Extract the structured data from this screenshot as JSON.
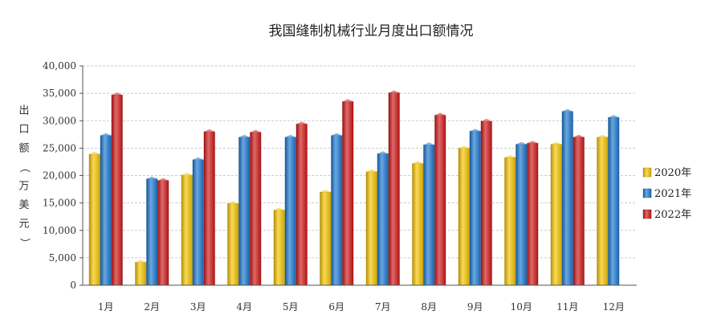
{
  "chart_data": {
    "type": "bar",
    "title": "我国缝制机械行业月度出口额情况",
    "ylabel": "出口额（万美元）",
    "xlabel": "",
    "ylim": [
      0,
      40000
    ],
    "yticks": [
      0,
      5000,
      10000,
      15000,
      20000,
      25000,
      30000,
      35000,
      40000
    ],
    "ytick_labels": [
      "0",
      "5,000",
      "10,000",
      "15,000",
      "20,000",
      "25,000",
      "30,000",
      "35,000",
      "40,000"
    ],
    "grid": true,
    "legend_position": "right",
    "categories": [
      "1月",
      "2月",
      "3月",
      "4月",
      "5月",
      "6月",
      "7月",
      "8月",
      "9月",
      "10月",
      "11月",
      "12月"
    ],
    "series": [
      {
        "name": "2020年",
        "color": "#F5C400",
        "values": [
          23900,
          4200,
          20100,
          14900,
          13700,
          17000,
          20700,
          22200,
          25000,
          23300,
          25700,
          27000
        ]
      },
      {
        "name": "2021年",
        "color": "#1B78D0",
        "values": [
          27300,
          19400,
          22900,
          27000,
          27000,
          27300,
          24000,
          25600,
          28100,
          25700,
          31700,
          30600
        ]
      },
      {
        "name": "2022年",
        "color": "#D01818",
        "values": [
          34700,
          19100,
          28000,
          27900,
          29400,
          33500,
          35100,
          31000,
          29900,
          25900,
          27000,
          null
        ]
      }
    ]
  }
}
